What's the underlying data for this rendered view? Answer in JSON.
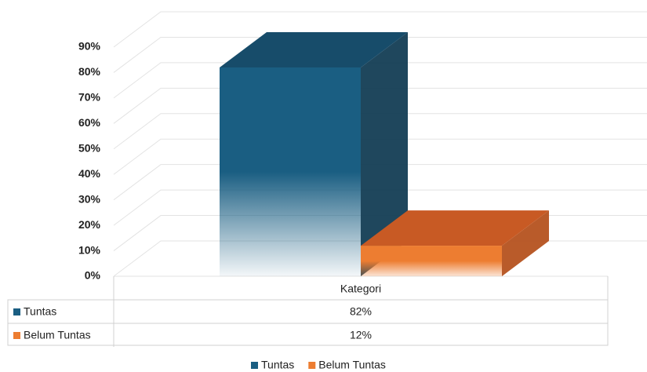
{
  "chart_data": {
    "type": "bar3d",
    "categories": [
      "Kategori"
    ],
    "series": [
      {
        "name": "Tuntas",
        "color": "#1a5e82",
        "values": [
          82
        ],
        "value_labels": [
          "82%"
        ]
      },
      {
        "name": "Belum Tuntas",
        "color": "#ed7d31",
        "values": [
          12
        ],
        "value_labels": [
          "12%"
        ]
      }
    ],
    "ylim": [
      0,
      90
    ],
    "yticks": [
      {
        "value": 0,
        "label": "0%"
      },
      {
        "value": 10,
        "label": "10%"
      },
      {
        "value": 20,
        "label": "20%"
      },
      {
        "value": 30,
        "label": "30%"
      },
      {
        "value": 40,
        "label": "40%"
      },
      {
        "value": 50,
        "label": "50%"
      },
      {
        "value": 60,
        "label": "60%"
      },
      {
        "value": 70,
        "label": "70%"
      },
      {
        "value": 80,
        "label": "80%"
      },
      {
        "value": 90,
        "label": "90%"
      }
    ],
    "grid": true,
    "legend": "bottom",
    "data_table": true
  }
}
